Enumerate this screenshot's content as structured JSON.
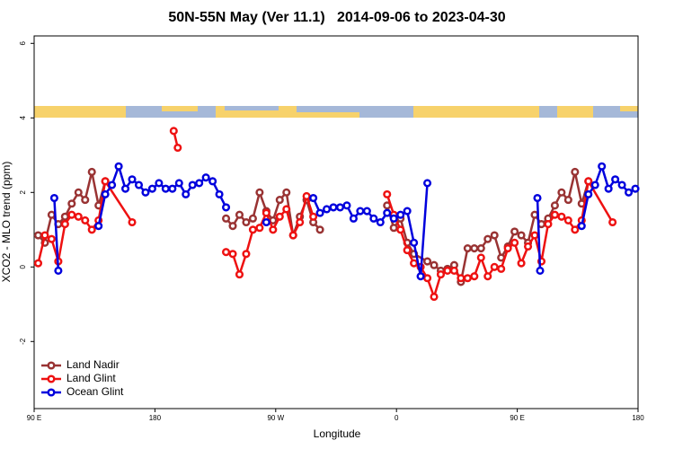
{
  "chart_data": {
    "type": "line",
    "title": "50N-55N May (Ver 11.1)   2014-09-06 to 2023-04-30",
    "xlabel": "Longitude",
    "ylabel": "XCO2 - MLO trend (ppm)",
    "xlim": [
      -270,
      180
    ],
    "ylim": [
      -3.8,
      6.2
    ],
    "xticks": [
      {
        "value": -270,
        "label": "90 E"
      },
      {
        "value": -180,
        "label": "180"
      },
      {
        "value": -90,
        "label": "90 W"
      },
      0,
      {
        "value": 90,
        "label": "90 E"
      },
      180
    ],
    "yticks": [
      -2,
      0,
      2,
      4,
      6
    ],
    "legend": "lower left",
    "series": [
      {
        "name": "Land Nadir",
        "color": "#993333",
        "x": [
          -267,
          -262,
          -257,
          -252,
          -247,
          -242,
          -237,
          -232,
          -227,
          -222,
          -217,
          null,
          -127,
          -122,
          -117,
          -112,
          -107,
          -102,
          -97,
          -92,
          -87,
          -82,
          -77,
          -72,
          -67,
          -62,
          -57,
          null,
          -7,
          -2,
          3,
          8,
          13,
          23,
          28,
          33,
          38,
          43,
          48,
          53,
          58,
          63,
          68,
          73,
          78,
          83,
          88,
          93,
          98,
          103,
          108,
          113,
          118,
          123,
          128,
          133,
          138,
          143
        ],
        "values": [
          0.85,
          0.65,
          1.4,
          1.15,
          1.35,
          1.7,
          2.0,
          1.8,
          2.55,
          1.65,
          2.3,
          null,
          1.3,
          1.1,
          1.4,
          1.2,
          1.3,
          2.0,
          1.5,
          1.25,
          1.8,
          2.0,
          0.85,
          1.35,
          1.8,
          1.2,
          1.0,
          null,
          1.65,
          1.05,
          1.3,
          0.65,
          0.35,
          0.15,
          0.05,
          -0.1,
          -0.05,
          0.05,
          -0.4,
          0.5,
          0.5,
          0.5,
          0.75,
          0.85,
          0.25,
          0.55,
          0.95,
          0.85,
          0.65,
          1.4,
          1.15,
          1.3,
          1.65,
          2.0,
          1.8,
          2.55,
          1.7,
          2.3
        ]
      },
      {
        "name": "Land Glint",
        "color": "#ee1111",
        "x": [
          -267,
          -262,
          -257,
          -252,
          -247,
          -242,
          -237,
          -232,
          -227,
          -222,
          -217,
          -197,
          null,
          -166,
          -163,
          null,
          -127,
          -122,
          -117,
          -112,
          -107,
          -102,
          -97,
          -92,
          -87,
          -82,
          -77,
          -72,
          -67,
          -62,
          null,
          -7,
          -2,
          3,
          8,
          13,
          18,
          23,
          28,
          33,
          38,
          43,
          48,
          53,
          58,
          63,
          68,
          73,
          78,
          83,
          88,
          93,
          98,
          103,
          108,
          113,
          118,
          123,
          128,
          133,
          138,
          143,
          161
        ],
        "values": [
          0.1,
          0.85,
          0.75,
          0.15,
          1.15,
          1.4,
          1.35,
          1.25,
          1.0,
          1.25,
          2.3,
          1.2,
          null,
          3.65,
          3.2,
          null,
          0.4,
          0.35,
          -0.2,
          0.35,
          1.0,
          1.05,
          1.45,
          1.0,
          1.35,
          1.55,
          0.85,
          1.2,
          1.9,
          1.35,
          null,
          1.95,
          1.4,
          1.0,
          0.45,
          0.1,
          0,
          -0.3,
          -0.8,
          -0.2,
          -0.1,
          -0.1,
          -0.3,
          -0.3,
          -0.25,
          0.25,
          -0.25,
          0,
          -0.05,
          0.5,
          0.65,
          0.1,
          0.55,
          0.85,
          0.15,
          1.15,
          1.4,
          1.35,
          1.25,
          1.0,
          1.25,
          2.3,
          1.2
        ]
      },
      {
        "name": "Ocean Glint",
        "color": "#0000dd",
        "x": [
          -255,
          -252,
          null,
          -222,
          -217,
          -212,
          -207,
          -202,
          -197,
          -192,
          -187,
          -182,
          -177,
          -172,
          -167,
          -162,
          -157,
          -152,
          -147,
          -142,
          -137,
          -132,
          -127,
          null,
          -97,
          null,
          -62,
          -57,
          -52,
          -47,
          -42,
          -37,
          -32,
          -27,
          -22,
          -17,
          -12,
          -7,
          -2,
          3,
          8,
          13,
          18,
          23,
          null,
          105,
          107,
          null,
          138,
          143,
          148,
          153,
          158,
          163,
          168,
          173,
          178
        ],
        "values": [
          1.85,
          -0.1,
          null,
          1.1,
          1.95,
          2.2,
          2.7,
          2.1,
          2.35,
          2.2,
          2.0,
          2.1,
          2.25,
          2.1,
          2.1,
          2.25,
          1.95,
          2.2,
          2.25,
          2.4,
          2.3,
          1.95,
          1.6,
          null,
          1.2,
          null,
          1.85,
          1.45,
          1.55,
          1.6,
          1.6,
          1.65,
          1.3,
          1.5,
          1.5,
          1.3,
          1.2,
          1.45,
          1.3,
          1.4,
          1.5,
          0.65,
          -0.25,
          2.25,
          null,
          1.85,
          -0.1,
          null,
          1.1,
          1.95,
          2.2,
          2.7,
          2.1,
          2.35,
          2.2,
          2.0,
          2.1
        ]
      }
    ]
  }
}
